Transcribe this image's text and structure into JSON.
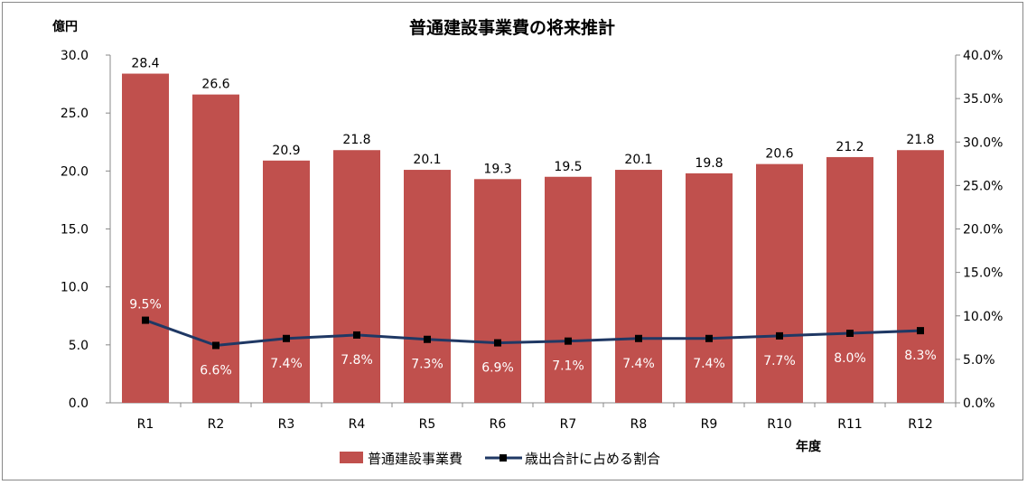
{
  "chart_data": {
    "type": "bar+line",
    "title": "普通建設事業費の将来推計",
    "ylabel_left": "億円",
    "xlabel": "年度",
    "categories": [
      "R1",
      "R2",
      "R3",
      "R4",
      "R5",
      "R6",
      "R7",
      "R8",
      "R9",
      "R10",
      "R11",
      "R12"
    ],
    "series": [
      {
        "name": "普通建設事業費",
        "type": "bar",
        "axis": "left",
        "color": "#C0504D",
        "values": [
          28.4,
          26.6,
          20.9,
          21.8,
          20.1,
          19.3,
          19.5,
          20.1,
          19.8,
          20.6,
          21.2,
          21.8
        ],
        "labels": [
          "28.4",
          "26.6",
          "20.9",
          "21.8",
          "20.1",
          "19.3",
          "19.5",
          "20.1",
          "19.8",
          "20.6",
          "21.2",
          "21.8"
        ]
      },
      {
        "name": "歳出合計に占める割合",
        "type": "line",
        "axis": "right",
        "color": "#1F3864",
        "values": [
          9.5,
          6.6,
          7.4,
          7.8,
          7.3,
          6.9,
          7.1,
          7.4,
          7.4,
          7.7,
          8.0,
          8.3
        ],
        "labels": [
          "9.5%",
          "6.6%",
          "7.4%",
          "7.8%",
          "7.3%",
          "6.9%",
          "7.1%",
          "7.4%",
          "7.4%",
          "7.7%",
          "8.0%",
          "8.3%"
        ]
      }
    ],
    "ylim_left": [
      0,
      30
    ],
    "yticks_left": [
      "0.0",
      "5.0",
      "10.0",
      "15.0",
      "20.0",
      "25.0",
      "30.0"
    ],
    "ylim_right": [
      0,
      40
    ],
    "yticks_right": [
      "0.0%",
      "5.0%",
      "10.0%",
      "15.0%",
      "20.0%",
      "25.0%",
      "30.0%",
      "35.0%",
      "40.0%"
    ],
    "grid": false,
    "legend": "bottom"
  }
}
